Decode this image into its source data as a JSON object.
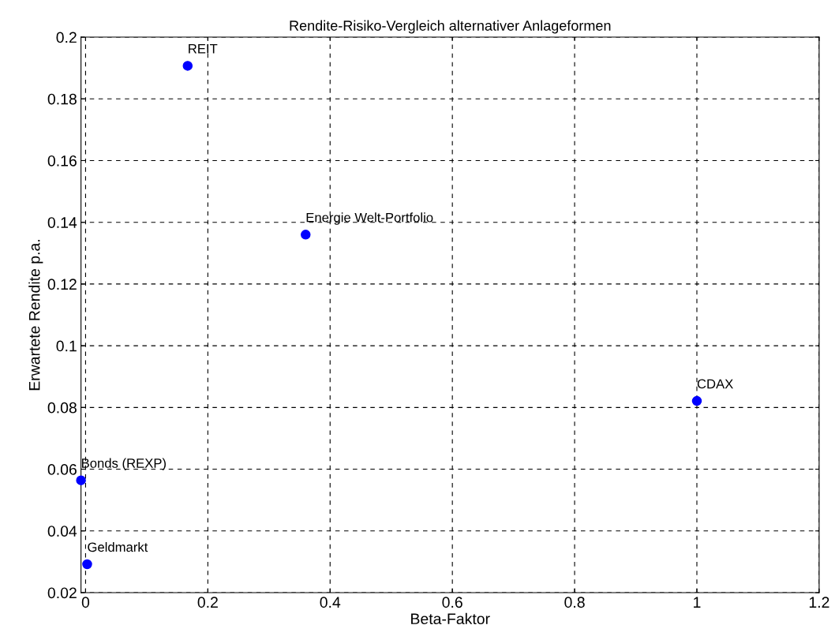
{
  "chart_data": {
    "type": "scatter",
    "title": "Rendite-Risiko-Vergleich alternativer Anlageformen",
    "xlabel": "Beta-Faktor",
    "ylabel": "Erwartete Rendite p.a.",
    "x": [
      0.167,
      0.36,
      1.0,
      -0.0075,
      0.0026
    ],
    "series": [
      {
        "color": "#0000ff",
        "values": [
          0.1907,
          0.136,
          0.0821,
          0.0564,
          0.0292
        ]
      }
    ],
    "annotations": [
      {
        "text": "REIT",
        "x": 0.167,
        "y": 0.1907
      },
      {
        "text": "Energie Welt-Portfolio",
        "x": 0.36,
        "y": 0.136
      },
      {
        "text": "CDAX",
        "x": 1.0,
        "y": 0.0821
      },
      {
        "text": "Bonds (REXP)",
        "x": -0.0075,
        "y": 0.0564
      },
      {
        "text": "Geldmarkt",
        "x": 0.0026,
        "y": 0.0292
      }
    ],
    "xlim": [
      -0.0075,
      1.2
    ],
    "xticks": [
      0,
      0.2,
      0.4,
      0.6,
      0.8,
      1,
      1.2
    ],
    "ylim": [
      0.02,
      0.2
    ],
    "yticks": [
      0.02,
      0.04,
      0.06,
      0.08,
      0.1,
      0.12,
      0.14,
      0.16,
      0.18,
      0.2
    ],
    "grid": true,
    "marker": "circle",
    "legend": false
  }
}
